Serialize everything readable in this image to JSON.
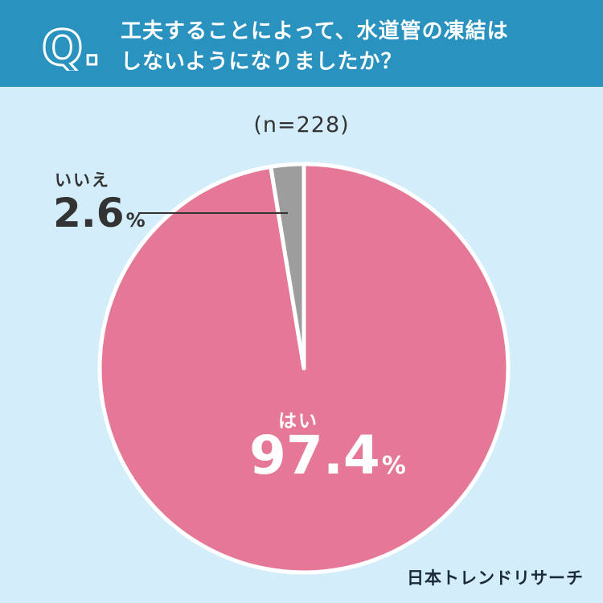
{
  "header": {
    "q_mark": "Q.",
    "question_line1": "工夫することによって、水道管の凍結は",
    "question_line2": "しないようになりましたか？"
  },
  "chart_data": {
    "type": "pie",
    "sample_size": "(n=228)",
    "slices": [
      {
        "name": "はい",
        "value": 97.4,
        "value_label": "97.4",
        "unit": "%",
        "color": "#e57797"
      },
      {
        "name": "いいえ",
        "value": 2.6,
        "value_label": "2.6",
        "unit": "%",
        "color": "#9d9d9d"
      }
    ]
  },
  "footer": {
    "brand": "日本トレンドリサーチ"
  },
  "colors": {
    "header_bg": "#2a92bf",
    "page_bg": "#d3eefa",
    "slice_border": "#ffffff"
  }
}
